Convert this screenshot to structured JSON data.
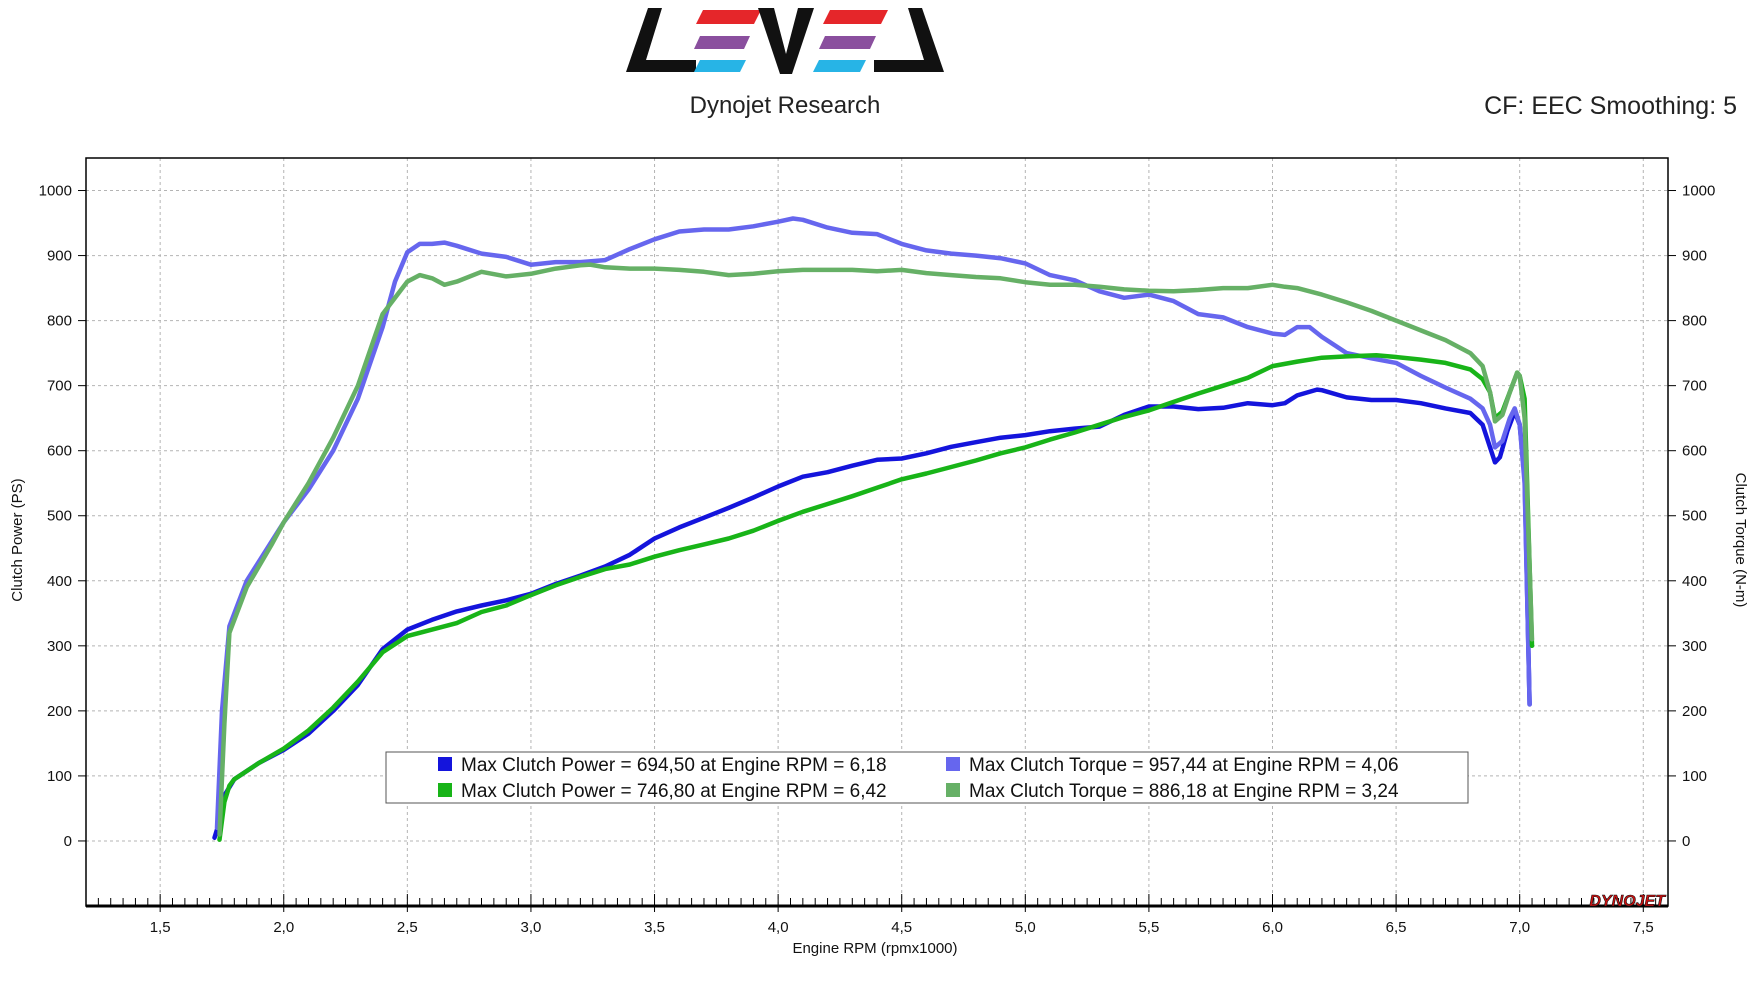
{
  "header": {
    "logo_alt": "LEVEL",
    "title": "Dynojet Research",
    "info": "CF: EEC Smoothing: 5",
    "watermark": "DYNOJET"
  },
  "colors": {
    "blue_power": "#1414dc",
    "blue_torque": "#6666ee",
    "green_power": "#18b418",
    "green_torque": "#66b066",
    "logo_red": "#e5262a",
    "logo_purple": "#8a4f9e",
    "logo_cyan": "#27b4e6"
  },
  "chart_data": {
    "type": "line",
    "xlabel": "Engine RPM (rpmx1000)",
    "ylabel_left": "Clutch Power (PS)",
    "ylabel_right": "Clutch Torque (N-m)",
    "xlim": [
      1.2,
      7.6
    ],
    "ylim": [
      -100,
      1050
    ],
    "x_ticks": [
      "1,5",
      "2,0",
      "2,5",
      "3,0",
      "3,5",
      "4,0",
      "4,5",
      "5,0",
      "5,5",
      "6,0",
      "6,5",
      "7,0",
      "7,5"
    ],
    "x_tick_values": [
      1.5,
      2.0,
      2.5,
      3.0,
      3.5,
      4.0,
      4.5,
      5.0,
      5.5,
      6.0,
      6.5,
      7.0,
      7.5
    ],
    "y_ticks": [
      "0",
      "100",
      "200",
      "300",
      "400",
      "500",
      "600",
      "700",
      "800",
      "900",
      "1000"
    ],
    "y_tick_values": [
      0,
      100,
      200,
      300,
      400,
      500,
      600,
      700,
      800,
      900,
      1000
    ],
    "grid": true,
    "legend_position": "bottom-center",
    "legend": [
      "Max Clutch Power = 694,50 at Engine RPM = 6,18",
      "Max Clutch Torque = 957,44 at Engine RPM = 4,06",
      "Max Clutch Power = 746,80 at Engine RPM = 6,42",
      "Max Clutch Torque = 886,18 at Engine RPM = 3,24"
    ],
    "series": [
      {
        "name": "Max Clutch Power = 694,50 at Engine RPM = 6,18",
        "color": "#1414dc",
        "x": [
          1.72,
          1.74,
          1.76,
          1.8,
          1.9,
          2.0,
          2.1,
          2.2,
          2.3,
          2.4,
          2.5,
          2.6,
          2.7,
          2.8,
          2.9,
          3.0,
          3.1,
          3.2,
          3.3,
          3.4,
          3.5,
          3.6,
          3.7,
          3.8,
          3.9,
          4.0,
          4.1,
          4.2,
          4.3,
          4.4,
          4.5,
          4.6,
          4.7,
          4.8,
          4.9,
          5.0,
          5.1,
          5.2,
          5.3,
          5.4,
          5.5,
          5.6,
          5.7,
          5.8,
          5.9,
          6.0,
          6.05,
          6.1,
          6.18,
          6.2,
          6.3,
          6.4,
          6.5,
          6.6,
          6.7,
          6.8,
          6.85,
          6.9,
          6.92,
          6.95,
          6.98,
          7.0,
          7.02,
          7.04
        ],
        "y": [
          5,
          30,
          70,
          95,
          120,
          140,
          165,
          200,
          240,
          295,
          325,
          340,
          353,
          362,
          370,
          380,
          395,
          408,
          422,
          440,
          465,
          482,
          497,
          512,
          528,
          545,
          560,
          567,
          577,
          586,
          588,
          596,
          606,
          613,
          620,
          624,
          630,
          634,
          637,
          655,
          668,
          668,
          664,
          666,
          673,
          670,
          673,
          685,
          694,
          693,
          682,
          678,
          678,
          673,
          665,
          658,
          640,
          582,
          590,
          630,
          660,
          640,
          560,
          210
        ]
      },
      {
        "name": "Max Clutch Torque = 957,44 at Engine RPM = 4,06",
        "color": "#6666ee",
        "x": [
          1.73,
          1.75,
          1.78,
          1.85,
          1.95,
          2.0,
          2.1,
          2.2,
          2.3,
          2.4,
          2.45,
          2.5,
          2.55,
          2.6,
          2.65,
          2.7,
          2.8,
          2.9,
          3.0,
          3.1,
          3.2,
          3.3,
          3.4,
          3.5,
          3.6,
          3.7,
          3.8,
          3.9,
          4.0,
          4.06,
          4.1,
          4.2,
          4.3,
          4.4,
          4.5,
          4.6,
          4.7,
          4.8,
          4.9,
          5.0,
          5.1,
          5.2,
          5.3,
          5.4,
          5.5,
          5.6,
          5.7,
          5.8,
          5.9,
          6.0,
          6.05,
          6.1,
          6.15,
          6.2,
          6.3,
          6.4,
          6.5,
          6.6,
          6.7,
          6.8,
          6.85,
          6.88,
          6.9,
          6.93,
          6.96,
          6.98,
          7.0,
          7.02,
          7.04
        ],
        "y": [
          20,
          200,
          330,
          400,
          460,
          490,
          540,
          600,
          680,
          790,
          860,
          905,
          918,
          918,
          920,
          915,
          903,
          898,
          886,
          890,
          890,
          893,
          910,
          925,
          937,
          940,
          940,
          945,
          952,
          957,
          955,
          943,
          935,
          933,
          918,
          908,
          903,
          900,
          896,
          888,
          870,
          862,
          845,
          835,
          840,
          830,
          810,
          805,
          790,
          780,
          778,
          790,
          790,
          775,
          750,
          742,
          735,
          715,
          697,
          680,
          665,
          640,
          605,
          615,
          650,
          665,
          640,
          550,
          210
        ]
      },
      {
        "name": "Max Clutch Power = 746,80 at Engine RPM = 6,42",
        "color": "#18b418",
        "x": [
          1.74,
          1.76,
          1.78,
          1.8,
          1.9,
          2.0,
          2.1,
          2.2,
          2.3,
          2.4,
          2.5,
          2.6,
          2.7,
          2.8,
          2.9,
          3.0,
          3.1,
          3.2,
          3.3,
          3.4,
          3.5,
          3.6,
          3.7,
          3.8,
          3.9,
          4.0,
          4.1,
          4.2,
          4.3,
          4.4,
          4.5,
          4.6,
          4.7,
          4.8,
          4.9,
          5.0,
          5.1,
          5.2,
          5.3,
          5.4,
          5.5,
          5.6,
          5.7,
          5.8,
          5.9,
          6.0,
          6.1,
          6.2,
          6.3,
          6.42,
          6.5,
          6.6,
          6.7,
          6.8,
          6.85,
          6.88,
          6.9,
          6.93,
          6.96,
          6.99,
          7.0,
          7.02,
          7.05
        ],
        "y": [
          2,
          60,
          85,
          95,
          120,
          142,
          170,
          205,
          245,
          290,
          315,
          325,
          335,
          352,
          362,
          378,
          393,
          406,
          418,
          425,
          437,
          447,
          456,
          465,
          477,
          492,
          506,
          518,
          530,
          543,
          556,
          565,
          575,
          585,
          596,
          605,
          617,
          628,
          640,
          652,
          662,
          675,
          688,
          700,
          712,
          730,
          737,
          743,
          745,
          746.8,
          744,
          740,
          735,
          725,
          710,
          690,
          650,
          660,
          690,
          720,
          715,
          680,
          300
        ]
      },
      {
        "name": "Max Clutch Torque = 886,18 at Engine RPM = 3,24",
        "color": "#66b066",
        "x": [
          1.74,
          1.76,
          1.78,
          1.85,
          1.95,
          2.0,
          2.1,
          2.2,
          2.3,
          2.4,
          2.5,
          2.55,
          2.6,
          2.65,
          2.7,
          2.8,
          2.9,
          3.0,
          3.1,
          3.2,
          3.24,
          3.3,
          3.4,
          3.5,
          3.6,
          3.7,
          3.8,
          3.9,
          4.0,
          4.1,
          4.2,
          4.3,
          4.4,
          4.5,
          4.6,
          4.7,
          4.8,
          4.9,
          5.0,
          5.1,
          5.2,
          5.3,
          5.4,
          5.5,
          5.6,
          5.7,
          5.8,
          5.9,
          6.0,
          6.05,
          6.1,
          6.2,
          6.3,
          6.4,
          6.5,
          6.6,
          6.7,
          6.8,
          6.85,
          6.88,
          6.9,
          6.93,
          6.96,
          6.99,
          7.0,
          7.02,
          7.05
        ],
        "y": [
          10,
          180,
          320,
          390,
          455,
          490,
          550,
          620,
          700,
          810,
          860,
          870,
          865,
          855,
          860,
          875,
          868,
          872,
          880,
          885,
          886.18,
          882,
          880,
          880,
          878,
          875,
          870,
          872,
          876,
          878,
          878,
          878,
          876,
          878,
          873,
          870,
          867,
          865,
          859,
          855,
          855,
          852,
          848,
          846,
          845,
          847,
          850,
          850,
          855,
          852,
          850,
          840,
          828,
          815,
          800,
          785,
          770,
          750,
          730,
          690,
          645,
          655,
          690,
          720,
          715,
          650,
          310
        ]
      }
    ]
  }
}
